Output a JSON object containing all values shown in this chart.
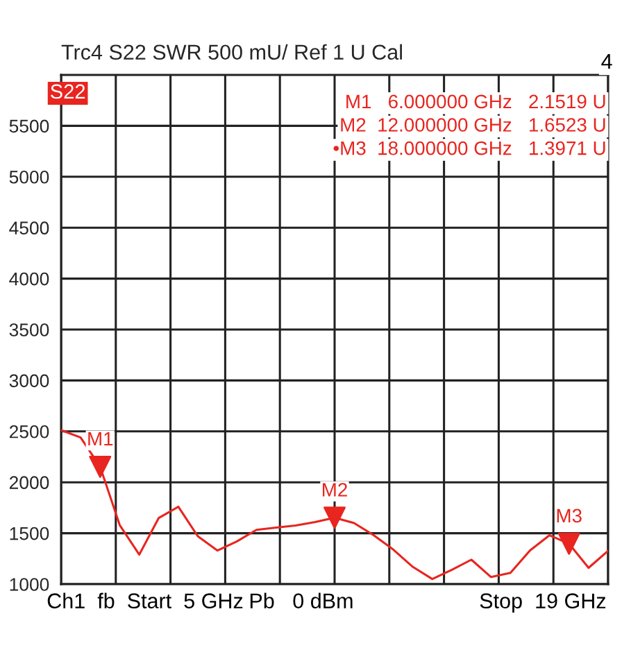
{
  "chart_data": {
    "type": "line",
    "title": "Trc4 S22 SWR 500 mU/ Ref 1 U Cal",
    "categories": [
      null,
      null,
      null,
      null,
      null,
      null,
      null,
      null,
      null,
      null,
      null,
      null,
      null,
      null,
      null,
      null,
      null,
      null,
      null,
      null,
      null,
      null,
      null,
      null,
      null,
      null,
      null,
      null,
      null
    ],
    "series": [
      {
        "color": "#e8251f",
        "values": [
          2512,
          2440,
          2152,
          1580,
          1290,
          1650,
          1760,
          1470,
          1330,
          1420,
          1533,
          1555,
          1575,
          1610,
          1652,
          1600,
          1480,
          1340,
          1170,
          1050,
          1140,
          1240,
          1070,
          1110,
          1330,
          1480,
          1397,
          1160,
          1328
        ]
      }
    ],
    "ylim": [
      1000,
      6000
    ],
    "yticks": [
      1000,
      1500,
      2000,
      2500,
      3000,
      3500,
      4000,
      4500,
      5000,
      5500
    ],
    "tick_labels": "y",
    "grid": true,
    "line_style": "solid",
    "marker": "none",
    "annotations": [
      {
        "text": "M1",
        "y": 2152
      },
      {
        "text": "M2",
        "y": 1652
      },
      {
        "text": "M3",
        "y": 1397
      },
      "4",
      "S22",
      "M1   6.000000 GHz   2.1519 U",
      "M2  12.000000 GHz   1.6523 U",
      "•M3  18.000000 GHz   1.3971 U",
      "Ch1  fb  Start  5 GHz",
      "Pb   0 dBm",
      "Stop  19 GHz"
    ]
  }
}
